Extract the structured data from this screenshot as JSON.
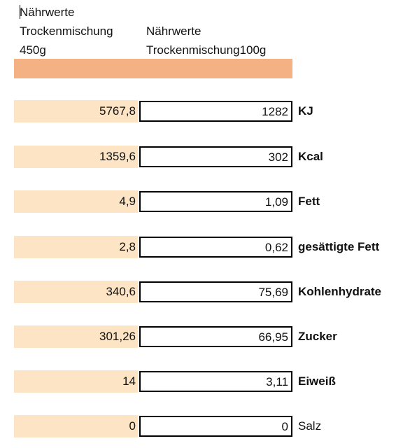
{
  "header": {
    "col1": "Nährwerte\nTrockenmischung\n450g",
    "col2": "Nährwerte\nTrockenmischung100g"
  },
  "colors": {
    "header_bar": "#f4b183",
    "value_cell": "#fce4c4"
  },
  "rows": [
    {
      "total": "5767,8",
      "per100": "1282",
      "label": "KJ",
      "bold": true
    },
    {
      "total": "1359,6",
      "per100": "302",
      "label": "Kcal",
      "bold": true
    },
    {
      "total": "4,9",
      "per100": "1,09",
      "label": "Fett",
      "bold": true
    },
    {
      "total": "2,8",
      "per100": "0,62",
      "label": "gesättigte Fett",
      "bold": true
    },
    {
      "total": "340,6",
      "per100": "75,69",
      "label": "Kohlenhydrate",
      "bold": true
    },
    {
      "total": "301,26",
      "per100": "66,95",
      "label": "Zucker",
      "bold": true
    },
    {
      "total": "14",
      "per100": "3,11",
      "label": "Eiweiß",
      "bold": true
    },
    {
      "total": "0",
      "per100": "0",
      "label": "Salz",
      "bold": false
    }
  ]
}
